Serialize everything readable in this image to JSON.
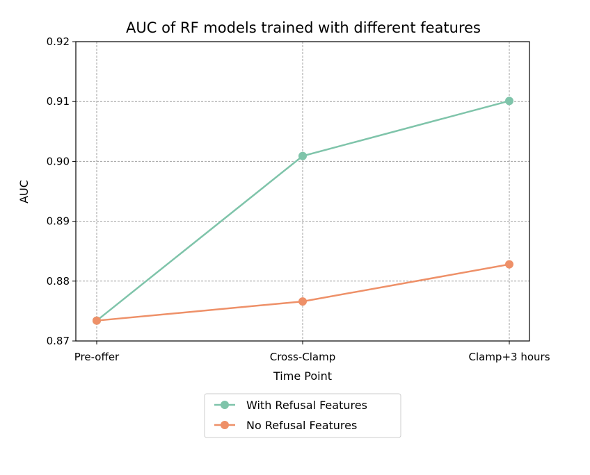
{
  "chart_data": {
    "type": "line",
    "title": "AUC of RF models trained with different features",
    "xlabel": "Time Point",
    "ylabel": "AUC",
    "categories": [
      "Pre-offer",
      "Cross-Clamp",
      "Clamp+3 hours"
    ],
    "ylim": [
      0.87,
      0.92
    ],
    "yticks": [
      "0.87",
      "0.88",
      "0.89",
      "0.90",
      "0.91",
      "0.92"
    ],
    "grid": true,
    "legend_position": "bottom-center",
    "series": [
      {
        "name": "With Refusal Features",
        "values": [
          0.8734,
          0.9009,
          0.9101
        ],
        "color": "#7fc4aa"
      },
      {
        "name": "No Refusal Features",
        "values": [
          0.8734,
          0.8766,
          0.8828
        ],
        "color": "#ee9068"
      }
    ]
  }
}
